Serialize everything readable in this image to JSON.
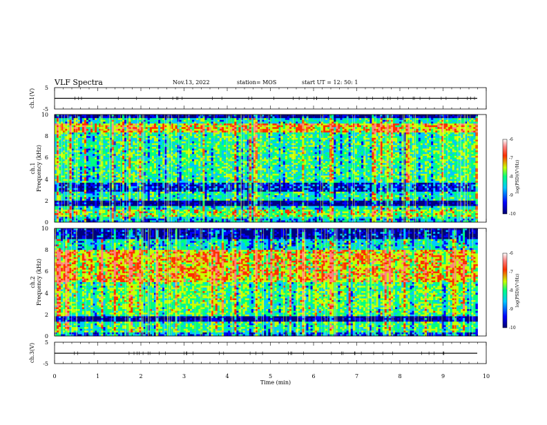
{
  "header": {
    "title": "VLF Spectra",
    "date": "Nov.13, 2022",
    "station": "station= MOS",
    "start": "start  UT  =   12: 50: 1"
  },
  "colors": {
    "background": "#ffffff",
    "axis": "#000000",
    "trace": "#000000",
    "colormap": [
      "#000080",
      "#0000ff",
      "#00c8ff",
      "#00ff80",
      "#c8ff00",
      "#ff3000",
      "#ff8080",
      "#ffffff"
    ]
  },
  "chart_data": [
    {
      "type": "line",
      "ylabel": "ch.1(V)",
      "ylim": [
        -5,
        5
      ],
      "y_ticks": [
        "5",
        "-5"
      ],
      "x": [
        0,
        9.8
      ],
      "y": [
        0,
        0
      ],
      "xlim": [
        0,
        10
      ]
    },
    {
      "type": "heatmap",
      "ylabel": "ch.1\nFrequency (kHz)",
      "ylim": [
        0,
        10
      ],
      "y_ticks": [
        "0",
        "2",
        "4",
        "6",
        "8",
        "10"
      ],
      "xlim": [
        0,
        10
      ],
      "data_x_end": 9.8,
      "colorbar": {
        "label": "log(PSD)(V²/Hz)",
        "range": [
          -10,
          -6
        ],
        "ticks": [
          "-6",
          "-7",
          "-8",
          "-9",
          "-10"
        ]
      }
    },
    {
      "type": "heatmap",
      "ylabel": "ch.2\nFrequency (kHz)",
      "ylim": [
        0,
        10
      ],
      "y_ticks": [
        "0",
        "2",
        "4",
        "6",
        "8",
        "10"
      ],
      "xlim": [
        0,
        10
      ],
      "data_x_end": 9.8,
      "colorbar": {
        "label": "log(PSD)(V²/Hz)",
        "range": [
          -10,
          -6
        ],
        "ticks": [
          "-6",
          "-7",
          "-8",
          "-9",
          "-10"
        ]
      }
    },
    {
      "type": "line",
      "ylabel": "ch.3(V)",
      "ylim": [
        -5,
        5
      ],
      "y_ticks": [
        "5",
        "-5"
      ],
      "x": [
        0,
        9.8
      ],
      "y": [
        0,
        0
      ],
      "xlim": [
        0,
        10
      ]
    }
  ],
  "x_axis": {
    "label": "Time  (min)",
    "ticks": [
      "0",
      "1",
      "2",
      "3",
      "4",
      "5",
      "6",
      "7",
      "8",
      "9",
      "10"
    ],
    "range": [
      0,
      10
    ]
  }
}
